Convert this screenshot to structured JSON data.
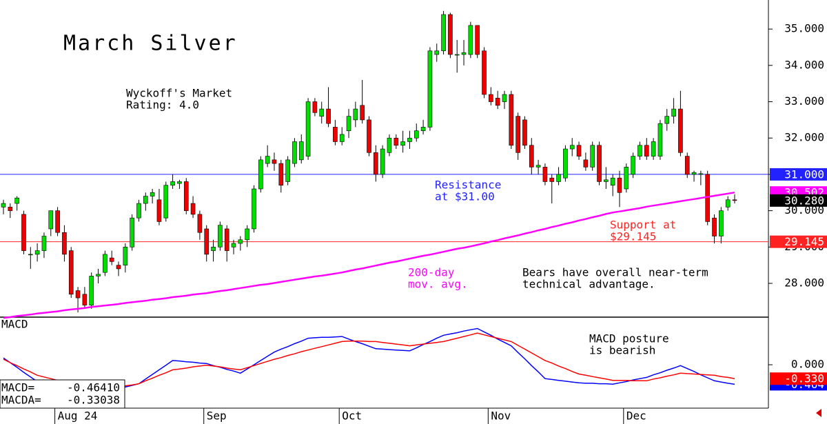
{
  "chart_data": [
    {
      "type": "candlestick",
      "title": "March Silver",
      "rating": [
        "Wyckoff's Market",
        "Rating: 4.0"
      ],
      "up_color": "#00dd00",
      "down_color": "#ee0000",
      "ylim": [
        27.07,
        35.8
      ],
      "yticks": [
        {
          "value": 28,
          "label": "28.000"
        },
        {
          "value": 29,
          "label": "29.000"
        },
        {
          "value": 30,
          "label": "30.000"
        },
        {
          "value": 31,
          "label": "31.000"
        },
        {
          "value": 32,
          "label": "32.000"
        },
        {
          "value": 33,
          "label": "33.000"
        },
        {
          "value": 34,
          "label": "34.000"
        },
        {
          "value": 35,
          "label": "35.000"
        }
      ],
      "lines": [
        {
          "value": 31,
          "label": "31.000",
          "color": "#2222ff"
        },
        {
          "value": 29.145,
          "label": "29.145",
          "color": "#ff2222"
        }
      ],
      "ma": {
        "color": "#ff00ff",
        "last": {
          "value": 30.502,
          "label": "30.502"
        },
        "values": [
          27.05,
          27.07,
          27.1,
          27.12,
          27.14,
          27.17,
          27.19,
          27.21,
          27.23,
          27.26,
          27.28,
          27.3,
          27.32,
          27.35,
          27.37,
          27.39,
          27.41,
          27.43,
          27.46,
          27.48,
          27.5,
          27.52,
          27.55,
          27.57,
          27.59,
          27.62,
          27.64,
          27.66,
          27.69,
          27.71,
          27.73,
          27.76,
          27.79,
          27.81,
          27.84,
          27.87,
          27.9,
          27.93,
          27.96,
          27.98,
          28.01,
          28.04,
          28.07,
          28.1,
          28.13,
          28.16,
          28.19,
          28.21,
          28.24,
          28.27,
          28.3,
          28.34,
          28.38,
          28.41,
          28.45,
          28.49,
          28.53,
          28.57,
          28.6,
          28.64,
          28.68,
          28.72,
          28.76,
          28.79,
          28.83,
          28.87,
          28.91,
          28.95,
          28.98,
          29.02,
          29.06,
          29.1,
          29.15,
          29.19,
          29.24,
          29.28,
          29.32,
          29.37,
          29.41,
          29.46,
          29.5,
          29.55,
          29.59,
          29.64,
          29.68,
          29.73,
          29.77,
          29.82,
          29.86,
          29.91,
          29.95,
          29.98,
          30.01,
          30.04,
          30.07,
          30.11,
          30.14,
          30.17,
          30.2,
          30.23,
          30.26,
          30.29,
          30.32,
          30.35,
          30.38,
          30.41,
          30.44,
          30.47,
          30.502
        ]
      },
      "last_price": {
        "value": 30.28,
        "label": "30.280"
      },
      "annotations": [
        {
          "text": [
            "Resistance",
            "at $31.00"
          ],
          "color": "#2222ff"
        },
        {
          "text": [
            "Support at",
            "$29.145"
          ],
          "color": "#ff2222"
        },
        {
          "text": [
            "200-day",
            "mov. avg."
          ],
          "color": "#ff00ff"
        },
        {
          "text": [
            "Bears have overall near-term",
            "technical advantage."
          ],
          "color": "#000000"
        }
      ],
      "candles": [
        [
          30.1,
          30.3,
          29.9,
          30.2
        ],
        [
          30.1,
          30.2,
          29.8,
          30.0
        ],
        [
          30.2,
          30.4,
          30.0,
          30.35
        ],
        [
          29.9,
          30.0,
          28.8,
          28.9
        ],
        [
          28.8,
          29.0,
          28.4,
          28.8
        ],
        [
          28.8,
          29.1,
          28.6,
          28.9
        ],
        [
          28.9,
          29.4,
          28.7,
          29.3
        ],
        [
          29.5,
          30.0,
          29.3,
          30.0
        ],
        [
          30.0,
          30.1,
          29.3,
          29.4
        ],
        [
          29.4,
          29.6,
          28.6,
          28.8
        ],
        [
          28.9,
          29.0,
          27.6,
          27.7
        ],
        [
          27.8,
          27.9,
          27.2,
          27.6
        ],
        [
          27.7,
          27.9,
          27.3,
          27.4
        ],
        [
          27.4,
          28.3,
          27.3,
          28.2
        ],
        [
          28.2,
          28.4,
          28.0,
          28.25
        ],
        [
          28.3,
          28.9,
          28.2,
          28.8
        ],
        [
          28.7,
          28.9,
          28.5,
          28.6
        ],
        [
          28.5,
          28.6,
          28.2,
          28.4
        ],
        [
          28.5,
          29.1,
          28.3,
          29.0
        ],
        [
          29.0,
          29.9,
          28.9,
          29.8
        ],
        [
          29.8,
          30.3,
          29.7,
          30.2
        ],
        [
          30.2,
          30.5,
          30.0,
          30.4
        ],
        [
          30.4,
          30.6,
          30.2,
          30.5
        ],
        [
          30.3,
          30.6,
          29.6,
          29.7
        ],
        [
          29.8,
          30.8,
          29.7,
          30.7
        ],
        [
          30.7,
          31.0,
          30.6,
          30.8
        ],
        [
          30.75,
          30.85,
          30.6,
          30.8
        ],
        [
          30.8,
          30.9,
          29.9,
          30.0
        ],
        [
          30.2,
          30.4,
          29.8,
          29.9
        ],
        [
          29.9,
          30.0,
          29.2,
          29.4
        ],
        [
          29.5,
          29.6,
          28.6,
          28.8
        ],
        [
          28.9,
          29.2,
          28.6,
          29.0
        ],
        [
          29.0,
          29.7,
          28.9,
          29.6
        ],
        [
          29.5,
          29.6,
          28.6,
          28.9
        ],
        [
          29.0,
          29.2,
          28.8,
          29.1
        ],
        [
          29.1,
          29.3,
          28.9,
          29.2
        ],
        [
          29.2,
          29.6,
          29.0,
          29.5
        ],
        [
          29.5,
          30.7,
          29.4,
          30.6
        ],
        [
          30.6,
          31.5,
          30.5,
          31.4
        ],
        [
          31.3,
          31.8,
          31.2,
          31.5
        ],
        [
          31.4,
          31.6,
          31.1,
          31.3
        ],
        [
          31.3,
          31.4,
          30.5,
          30.7
        ],
        [
          30.8,
          31.5,
          30.7,
          31.4
        ],
        [
          31.3,
          32.0,
          31.2,
          31.9
        ],
        [
          31.4,
          32.1,
          31.3,
          31.9
        ],
        [
          31.5,
          33.1,
          31.4,
          33.0
        ],
        [
          33.0,
          33.1,
          32.6,
          32.7
        ],
        [
          32.6,
          33.0,
          32.4,
          32.8
        ],
        [
          32.8,
          33.4,
          32.3,
          32.4
        ],
        [
          32.3,
          32.5,
          31.8,
          31.9
        ],
        [
          31.9,
          32.3,
          31.8,
          32.1
        ],
        [
          32.2,
          32.8,
          32.0,
          32.6
        ],
        [
          32.5,
          33.0,
          32.3,
          32.8
        ],
        [
          32.9,
          33.6,
          32.4,
          32.5
        ],
        [
          32.5,
          32.6,
          31.5,
          31.6
        ],
        [
          31.6,
          31.8,
          30.8,
          31.0
        ],
        [
          31.0,
          31.8,
          30.9,
          31.7
        ],
        [
          31.6,
          32.1,
          31.5,
          32.0
        ],
        [
          32.0,
          32.1,
          31.7,
          31.8
        ],
        [
          31.8,
          32.2,
          31.6,
          31.9
        ],
        [
          31.9,
          32.2,
          31.7,
          32.0
        ],
        [
          32.0,
          32.4,
          31.9,
          32.2
        ],
        [
          32.2,
          32.5,
          32.1,
          32.3
        ],
        [
          32.3,
          34.5,
          32.2,
          34.4
        ],
        [
          34.3,
          34.6,
          34.1,
          34.4
        ],
        [
          34.4,
          35.5,
          34.3,
          35.4
        ],
        [
          35.4,
          35.45,
          34.2,
          34.3
        ],
        [
          34.3,
          34.7,
          33.8,
          34.3
        ],
        [
          34.3,
          34.7,
          34.0,
          34.35
        ],
        [
          34.3,
          35.2,
          34.2,
          35.1
        ],
        [
          35.1,
          35.1,
          34.2,
          34.3
        ],
        [
          34.4,
          34.5,
          33.1,
          33.2
        ],
        [
          33.2,
          33.4,
          32.9,
          33.0
        ],
        [
          33.1,
          33.3,
          32.8,
          32.9
        ],
        [
          33.0,
          33.3,
          32.8,
          33.2
        ],
        [
          33.2,
          33.3,
          31.7,
          31.8
        ],
        [
          32.6,
          32.7,
          31.4,
          31.6
        ],
        [
          32.5,
          32.6,
          31.7,
          31.8
        ],
        [
          31.8,
          32.0,
          31.0,
          31.2
        ],
        [
          31.2,
          31.4,
          31.0,
          31.25
        ],
        [
          31.2,
          31.3,
          30.7,
          30.8
        ],
        [
          30.9,
          31.0,
          30.2,
          30.8
        ],
        [
          30.8,
          31.2,
          30.7,
          31.0
        ],
        [
          30.9,
          31.8,
          30.8,
          31.7
        ],
        [
          31.7,
          32.0,
          31.5,
          31.8
        ],
        [
          31.8,
          31.9,
          31.4,
          31.5
        ],
        [
          31.4,
          31.6,
          31.1,
          31.2
        ],
        [
          31.2,
          31.9,
          31.1,
          31.8
        ],
        [
          31.8,
          31.9,
          30.7,
          30.8
        ],
        [
          30.8,
          31.2,
          30.6,
          30.85
        ],
        [
          30.7,
          31.0,
          30.4,
          30.9
        ],
        [
          30.9,
          31.1,
          30.1,
          30.5
        ],
        [
          30.6,
          31.3,
          30.5,
          31.2
        ],
        [
          31.0,
          31.6,
          30.9,
          31.5
        ],
        [
          31.5,
          31.9,
          31.4,
          31.8
        ],
        [
          31.8,
          32.0,
          31.4,
          31.5
        ],
        [
          31.5,
          32.0,
          31.4,
          31.9
        ],
        [
          31.5,
          32.5,
          31.4,
          32.4
        ],
        [
          32.4,
          32.8,
          32.2,
          32.6
        ],
        [
          32.6,
          33.1,
          32.4,
          32.8
        ],
        [
          32.8,
          33.3,
          31.5,
          31.6
        ],
        [
          31.5,
          31.6,
          30.9,
          31.0
        ],
        [
          31.0,
          31.1,
          30.8,
          31.05
        ],
        [
          31.0,
          31.1,
          30.7,
          31.02
        ],
        [
          31.0,
          31.1,
          29.6,
          29.7
        ],
        [
          29.8,
          29.9,
          29.1,
          29.3
        ],
        [
          29.3,
          30.1,
          29.1,
          30.0
        ],
        [
          30.1,
          30.4,
          30.0,
          30.3
        ],
        [
          30.3,
          30.45,
          30.2,
          30.28
        ]
      ]
    },
    {
      "type": "line",
      "title": "MACD",
      "ylim": [
        -1.03,
        1.13
      ],
      "yticks": [
        {
          "value": 0,
          "label": "0.000"
        }
      ],
      "annotation": [
        "MACD posture",
        "is bearish"
      ],
      "categories": [
        null,
        null,
        null,
        null,
        null,
        null,
        null,
        null,
        "Aug 24",
        null,
        null,
        null,
        null,
        null,
        null,
        null,
        null,
        null,
        null,
        null,
        null,
        null,
        null,
        null,
        null,
        null,
        null,
        null,
        null,
        null,
        "Sep",
        null,
        null,
        null,
        null,
        null,
        null,
        null,
        null,
        null,
        null,
        null,
        null,
        null,
        null,
        null,
        null,
        null,
        null,
        null,
        "Oct",
        null,
        null,
        null,
        null,
        null,
        null,
        null,
        null,
        null,
        null,
        null,
        null,
        null,
        null,
        null,
        null,
        null,
        null,
        null,
        null,
        null,
        "Nov",
        null,
        null,
        null,
        null,
        null,
        null,
        null,
        null,
        null,
        null,
        null,
        null,
        null,
        null,
        null,
        null,
        null,
        null,
        null,
        "Dec",
        null,
        null,
        null,
        null,
        null,
        null,
        null,
        null,
        null,
        null,
        null,
        null,
        null,
        null,
        null,
        null
      ],
      "series": [
        {
          "name": "MACD=",
          "color": "#0000ff",
          "readout": {
            "value": -0.4641,
            "label": "-0.46410"
          },
          "last": {
            "value": -0.464,
            "label": "-0.464"
          },
          "values": [
            0.16,
            0.05,
            -0.06,
            -0.18,
            -0.29,
            -0.4,
            -0.44,
            -0.49,
            -0.53,
            -0.58,
            -0.62,
            -0.63,
            -0.64,
            -0.64,
            -0.65,
            -0.66,
            -0.62,
            -0.58,
            -0.53,
            -0.49,
            -0.45,
            -0.34,
            -0.23,
            -0.12,
            -0.01,
            0.1,
            0.09,
            0.07,
            0.06,
            0.04,
            0.03,
            -0.02,
            -0.06,
            -0.11,
            -0.15,
            -0.2,
            -0.1,
            0.0,
            0.1,
            0.2,
            0.3,
            0.37,
            0.43,
            0.5,
            0.56,
            0.63,
            0.64,
            0.65,
            0.65,
            0.66,
            0.67,
            0.61,
            0.55,
            0.5,
            0.44,
            0.38,
            0.37,
            0.36,
            0.35,
            0.34,
            0.33,
            0.4,
            0.48,
            0.55,
            0.63,
            0.7,
            0.73,
            0.76,
            0.8,
            0.83,
            0.86,
            0.78,
            0.7,
            0.61,
            0.53,
            0.45,
            0.29,
            0.14,
            -0.02,
            -0.17,
            -0.33,
            -0.35,
            -0.37,
            -0.39,
            -0.41,
            -0.43,
            -0.44,
            -0.44,
            -0.45,
            -0.45,
            -0.46,
            -0.43,
            -0.4,
            -0.36,
            -0.33,
            -0.3,
            -0.24,
            -0.19,
            -0.13,
            -0.08,
            -0.02,
            -0.09,
            -0.16,
            -0.24,
            -0.31,
            -0.38,
            -0.41,
            -0.44,
            -0.464
          ]
        },
        {
          "name": "MACDA=",
          "color": "#ff0000",
          "readout": {
            "value": -0.33038,
            "label": "-0.33038"
          },
          "last": {
            "value": -0.33,
            "label": "-0.330"
          },
          "values": [
            0.13,
            0.05,
            -0.02,
            -0.1,
            -0.17,
            -0.25,
            -0.29,
            -0.33,
            -0.37,
            -0.41,
            -0.45,
            -0.48,
            -0.5,
            -0.53,
            -0.55,
            -0.58,
            -0.55,
            -0.53,
            -0.5,
            -0.48,
            -0.45,
            -0.38,
            -0.32,
            -0.25,
            -0.19,
            -0.12,
            -0.1,
            -0.08,
            -0.05,
            -0.03,
            -0.01,
            -0.03,
            -0.05,
            -0.08,
            -0.1,
            -0.12,
            -0.07,
            -0.02,
            0.03,
            0.08,
            0.13,
            0.17,
            0.22,
            0.26,
            0.31,
            0.35,
            0.39,
            0.43,
            0.47,
            0.51,
            0.55,
            0.56,
            0.56,
            0.56,
            0.55,
            0.55,
            0.53,
            0.51,
            0.49,
            0.47,
            0.45,
            0.47,
            0.49,
            0.51,
            0.53,
            0.55,
            0.59,
            0.63,
            0.67,
            0.71,
            0.75,
            0.71,
            0.67,
            0.63,
            0.59,
            0.55,
            0.46,
            0.37,
            0.28,
            0.19,
            0.1,
            0.04,
            -0.03,
            -0.09,
            -0.16,
            -0.22,
            -0.25,
            -0.28,
            -0.31,
            -0.34,
            -0.37,
            -0.37,
            -0.37,
            -0.38,
            -0.38,
            -0.38,
            -0.34,
            -0.31,
            -0.27,
            -0.24,
            -0.2,
            -0.21,
            -0.22,
            -0.23,
            -0.24,
            -0.25,
            -0.28,
            -0.3,
            -0.33
          ]
        }
      ]
    }
  ]
}
